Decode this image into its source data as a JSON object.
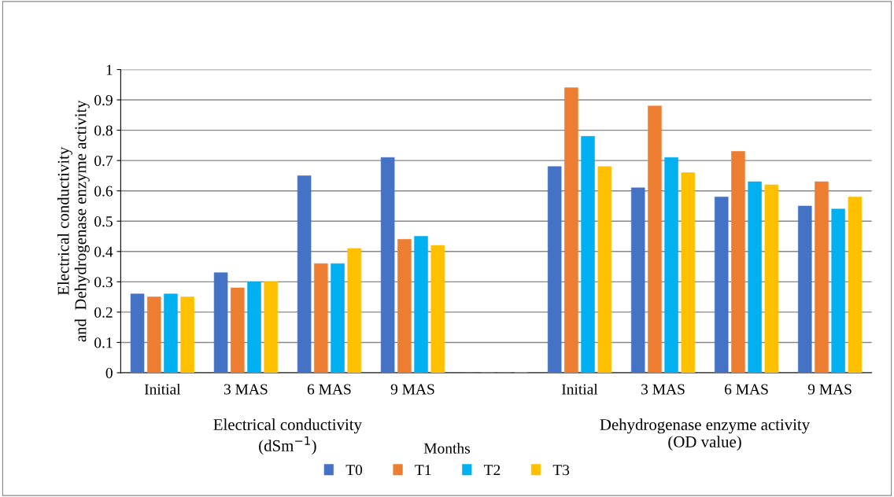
{
  "chart_data": {
    "type": "bar",
    "ylabel": "Electrical conductivity\nand  Dehydrogenase enzyme activity",
    "legend_title": "Months",
    "categories": [
      "Initial",
      "3 MAS",
      "6 MAS",
      "9 MAS",
      null,
      "Initial",
      "3 MAS",
      "6 MAS",
      "9 MAS"
    ],
    "series": [
      {
        "name": "T0",
        "color": "#4472c4",
        "values": [
          0.26,
          0.33,
          0.65,
          0.71,
          0,
          0.68,
          0.61,
          0.58,
          0.55
        ]
      },
      {
        "name": "T1",
        "color": "#ed7d31",
        "values": [
          0.25,
          0.28,
          0.36,
          0.44,
          0,
          0.94,
          0.88,
          0.73,
          0.63
        ]
      },
      {
        "name": "T2",
        "color": "#00b0f0",
        "values": [
          0.26,
          0.3,
          0.36,
          0.45,
          0,
          0.78,
          0.71,
          0.63,
          0.54
        ]
      },
      {
        "name": "T3",
        "color": "#ffc000",
        "values": [
          0.25,
          0.3,
          0.41,
          0.42,
          0,
          0.68,
          0.66,
          0.62,
          0.58
        ]
      }
    ],
    "ylim": [
      0,
      1
    ],
    "yticks": [
      0,
      0.1,
      0.2,
      0.3,
      0.4,
      0.5,
      0.6,
      0.7,
      0.8,
      0.9,
      1
    ],
    "grid": "y",
    "legend": "bottom",
    "annotations": [
      "Electrical conductivity\n(dSm$^{−1}$)",
      "Dehydrogenase enzyme activity\n(OD value)"
    ]
  }
}
